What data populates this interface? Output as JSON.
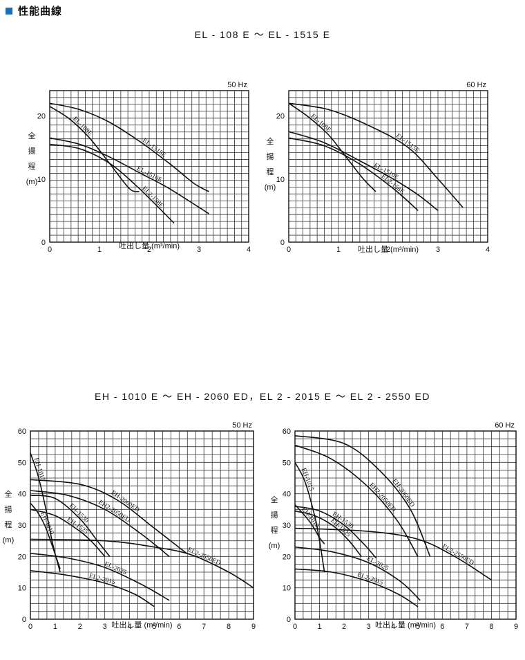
{
  "header": {
    "title": "性能曲線",
    "accent_color": "#1b6fb8"
  },
  "groups": [
    {
      "title": "EL - 108 E ～ EL - 1515 E"
    },
    {
      "title": "EH - 1010 E ～ EH - 2060 ED，EL 2 - 2015 E ～ EL 2 - 2550 ED"
    }
  ],
  "chart_data": [
    {
      "type": "line",
      "freq_label": "50 Hz",
      "xlabel": "吐出し量 (m³/min)",
      "ylabel": [
        "全",
        "揚",
        "程",
        "(m)"
      ],
      "xlim": [
        0,
        4
      ],
      "ylim": [
        0,
        24
      ],
      "xticks": [
        0,
        1,
        2,
        3,
        4
      ],
      "yticks": [
        10,
        20
      ],
      "grid": true,
      "series": [
        {
          "name": "EL-108E",
          "x": [
            0,
            0.4,
            0.8,
            1.2,
            1.6,
            1.8
          ],
          "y": [
            21.5,
            19.5,
            16.5,
            12.5,
            8.5,
            8
          ],
          "label_at": 0.3
        },
        {
          "name": "EL-1515E",
          "x": [
            0,
            0.6,
            1.2,
            1.8,
            2.4,
            2.9,
            3.2
          ],
          "y": [
            22,
            21,
            19,
            16,
            12.5,
            9.3,
            8
          ],
          "label_at": 0.62
        },
        {
          "name": "EL-1510E",
          "x": [
            0,
            0.6,
            1.2,
            1.8,
            2.4,
            3.2
          ],
          "y": [
            16.5,
            15.5,
            13.5,
            11,
            8.5,
            4.5
          ],
          "label_at": 0.6
        },
        {
          "name": "EL2-158E",
          "x": [
            0,
            0.6,
            1.2,
            1.8,
            2.5
          ],
          "y": [
            15.5,
            14.8,
            12.5,
            8.5,
            3
          ],
          "label_at": 0.78
        }
      ]
    },
    {
      "type": "line",
      "freq_label": "60 Hz",
      "xlabel": "吐出し量 (m³/min)",
      "ylabel": [
        "全",
        "揚",
        "程",
        "(m)"
      ],
      "xlim": [
        0,
        4
      ],
      "ylim": [
        0,
        24
      ],
      "xticks": [
        0,
        1,
        2,
        3,
        4
      ],
      "yticks": [
        10,
        20
      ],
      "grid": true,
      "series": [
        {
          "name": "EL-108E",
          "x": [
            0,
            0.4,
            0.8,
            1.2,
            1.5,
            1.75
          ],
          "y": [
            22,
            19.8,
            17,
            13,
            10,
            8
          ],
          "label_at": 0.3
        },
        {
          "name": "EL-1515E",
          "x": [
            0,
            0.8,
            1.6,
            2.4,
            3,
            3.5
          ],
          "y": [
            22,
            21,
            18.5,
            15,
            10,
            5.5
          ],
          "label_at": 0.6
        },
        {
          "name": "EL-1510E",
          "x": [
            0,
            0.7,
            1.4,
            2.1,
            2.6,
            3
          ],
          "y": [
            17.5,
            15.8,
            13,
            10,
            7.5,
            5
          ],
          "label_at": 0.62
        },
        {
          "name": "EL2-158E",
          "x": [
            0,
            0.7,
            1.4,
            2.1,
            2.6
          ],
          "y": [
            16.5,
            15.3,
            12.5,
            8.5,
            5
          ],
          "label_at": 0.76
        }
      ]
    },
    {
      "type": "line",
      "freq_label": "50 Hz",
      "xlabel": "吐出し量 (m³/min)",
      "ylabel": [
        "全",
        "揚",
        "程",
        "(m)"
      ],
      "xlim": [
        0,
        9
      ],
      "ylim": [
        0,
        60
      ],
      "xticks": [
        0,
        1,
        2,
        3,
        4,
        5,
        6,
        7,
        8,
        9
      ],
      "yticks": [
        10,
        20,
        30,
        40,
        50,
        60
      ],
      "grid": true,
      "series": [
        {
          "name": "EH-1015",
          "x": [
            0,
            0.3,
            0.6,
            0.9,
            1.2
          ],
          "y": [
            53,
            46,
            36,
            24,
            15
          ],
          "label_at": 0.15
        },
        {
          "name": "EH-1010",
          "x": [
            0,
            0.3,
            0.6,
            0.9,
            1.2
          ],
          "y": [
            37,
            34,
            29.5,
            23,
            16
          ],
          "label_at": 0.35
        },
        {
          "name": "EH-1530",
          "x": [
            0,
            1,
            2,
            2.7,
            3.2
          ],
          "y": [
            39.5,
            38.5,
            32,
            25,
            20
          ],
          "label_at": 0.5
        },
        {
          "name": "EH-1525",
          "x": [
            0,
            1,
            2,
            2.5,
            3.0
          ],
          "y": [
            35,
            33,
            28,
            24.5,
            20
          ],
          "label_at": 0.55
        },
        {
          "name": "EH2-2050ED",
          "x": [
            0,
            1.5,
            3,
            4.5,
            5.6
          ],
          "y": [
            41,
            39.5,
            35,
            27,
            20
          ],
          "label_at": 0.55
        },
        {
          "name": "EH-2060ED",
          "x": [
            0,
            2,
            3.5,
            5,
            6.3
          ],
          "y": [
            44.5,
            43,
            38,
            29,
            21
          ],
          "label_at": 0.55
        },
        {
          "name": "EL2-2550ED",
          "x": [
            0,
            3,
            5,
            6.5,
            8,
            9
          ],
          "y": [
            25.5,
            25,
            23,
            20.5,
            15,
            10
          ],
          "label_at": 0.75
        },
        {
          "name": "EL-2025",
          "x": [
            0,
            1.5,
            3,
            4.5,
            5.6
          ],
          "y": [
            21,
            19.5,
            16.5,
            11,
            6
          ],
          "label_at": 0.58
        },
        {
          "name": "EL2-2015",
          "x": [
            0,
            1.5,
            3,
            4.2,
            5
          ],
          "y": [
            15.5,
            14,
            11.5,
            8,
            4
          ],
          "label_at": 0.55
        }
      ]
    },
    {
      "type": "line",
      "freq_label": "60 Hz",
      "xlabel": "吐出し量 (m³/min)",
      "ylabel": [
        "全",
        "揚",
        "程",
        "(m)"
      ],
      "xlim": [
        0,
        9
      ],
      "ylim": [
        0,
        60
      ],
      "xticks": [
        0,
        1,
        2,
        3,
        4,
        5,
        6,
        7,
        8,
        9
      ],
      "yticks": [
        10,
        20,
        30,
        40,
        50,
        60
      ],
      "grid": true,
      "series": [
        {
          "name": "EH-1015",
          "x": [
            0,
            0.4,
            0.8,
            1.0,
            1.2
          ],
          "y": [
            50,
            44,
            33,
            25,
            15
          ],
          "label_at": 0.18
        },
        {
          "name": "EH-1010",
          "x": [
            0,
            0.4,
            0.7,
            1.0,
            1.2
          ],
          "y": [
            36.5,
            33,
            30,
            26,
            24
          ],
          "label_at": 0.4
        },
        {
          "name": "EH-1530",
          "x": [
            0,
            1,
            2,
            2.8,
            3.3
          ],
          "y": [
            36,
            34.5,
            30,
            24,
            19.5
          ],
          "label_at": 0.5
        },
        {
          "name": "EH-1525",
          "x": [
            0,
            0.8,
            1.6,
            2.2,
            2.7
          ],
          "y": [
            34.5,
            33,
            29.5,
            25,
            20
          ],
          "label_at": 0.58
        },
        {
          "name": "EH2-2050ED",
          "x": [
            0,
            1.5,
            3,
            4.2,
            5.0
          ],
          "y": [
            55.5,
            51,
            42,
            31,
            20
          ],
          "label_at": 0.6
        },
        {
          "name": "EH-2060ED",
          "x": [
            0,
            2,
            3.5,
            4.7,
            5.5
          ],
          "y": [
            58.5,
            56,
            47,
            35,
            20
          ],
          "label_at": 0.65
        },
        {
          "name": "EL2-2550ED",
          "x": [
            0,
            3,
            5,
            6.5,
            8
          ],
          "y": [
            29,
            28,
            25.5,
            20,
            12.5
          ],
          "label_at": 0.8
        },
        {
          "name": "EL-2025",
          "x": [
            0,
            1.5,
            3,
            4.3,
            5.1
          ],
          "y": [
            23,
            21.5,
            18,
            12,
            6
          ],
          "label_at": 0.6
        },
        {
          "name": "EL2-2015",
          "x": [
            0,
            1.5,
            3,
            4.2,
            5.0
          ],
          "y": [
            16,
            15,
            12,
            8,
            4
          ],
          "label_at": 0.58
        }
      ]
    }
  ]
}
